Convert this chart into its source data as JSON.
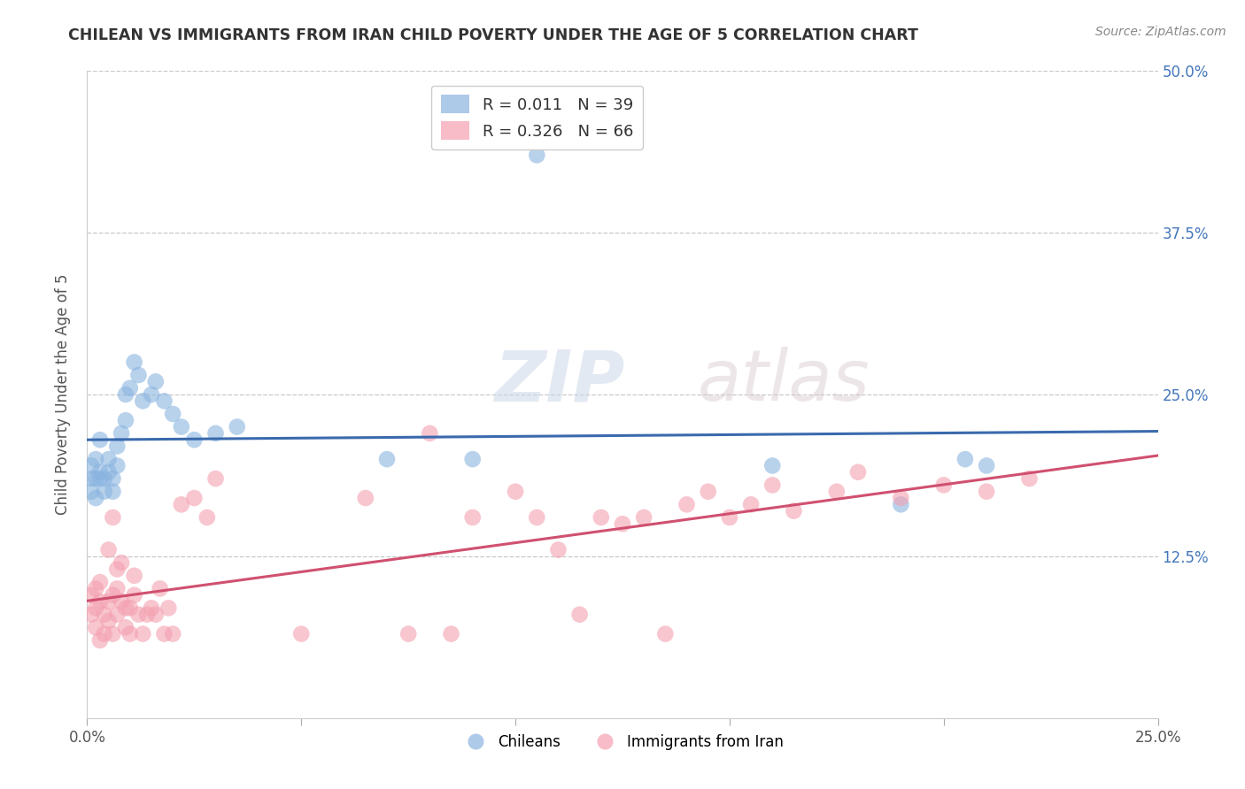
{
  "title": "CHILEAN VS IMMIGRANTS FROM IRAN CHILD POVERTY UNDER THE AGE OF 5 CORRELATION CHART",
  "source": "Source: ZipAtlas.com",
  "ylabel": "Child Poverty Under the Age of 5",
  "xlim": [
    0.0,
    0.25
  ],
  "ylim": [
    0.0,
    0.5
  ],
  "ytick_positions": [
    0.125,
    0.25,
    0.375,
    0.5
  ],
  "right_ytick_labels": [
    "12.5%",
    "25.0%",
    "37.5%",
    "50.0%"
  ],
  "legend_blue_r": "R = 0.011",
  "legend_blue_n": "N = 39",
  "legend_pink_r": "R = 0.326",
  "legend_pink_n": "N = 66",
  "blue_color": "#8ab4e0",
  "pink_color": "#f4a0b0",
  "blue_line_color": "#3a6aad",
  "pink_line_color": "#d05070",
  "watermark_zip": "ZIP",
  "watermark_atlas": "atlas",
  "blue_scatter_x": [
    0.001,
    0.001,
    0.001,
    0.002,
    0.002,
    0.002,
    0.003,
    0.003,
    0.003,
    0.004,
    0.004,
    0.005,
    0.005,
    0.006,
    0.006,
    0.007,
    0.007,
    0.008,
    0.009,
    0.009,
    0.01,
    0.011,
    0.012,
    0.013,
    0.015,
    0.016,
    0.018,
    0.02,
    0.022,
    0.025,
    0.03,
    0.035,
    0.07,
    0.09,
    0.105,
    0.16,
    0.19,
    0.205,
    0.21
  ],
  "blue_scatter_y": [
    0.195,
    0.185,
    0.175,
    0.2,
    0.185,
    0.17,
    0.215,
    0.19,
    0.185,
    0.175,
    0.185,
    0.19,
    0.2,
    0.185,
    0.175,
    0.21,
    0.195,
    0.22,
    0.25,
    0.23,
    0.255,
    0.275,
    0.265,
    0.245,
    0.25,
    0.26,
    0.245,
    0.235,
    0.225,
    0.215,
    0.22,
    0.225,
    0.2,
    0.2,
    0.435,
    0.195,
    0.165,
    0.2,
    0.195
  ],
  "pink_scatter_x": [
    0.001,
    0.001,
    0.002,
    0.002,
    0.002,
    0.003,
    0.003,
    0.003,
    0.004,
    0.004,
    0.005,
    0.005,
    0.005,
    0.006,
    0.006,
    0.006,
    0.007,
    0.007,
    0.007,
    0.008,
    0.008,
    0.009,
    0.009,
    0.01,
    0.01,
    0.011,
    0.011,
    0.012,
    0.013,
    0.014,
    0.015,
    0.016,
    0.017,
    0.018,
    0.019,
    0.02,
    0.022,
    0.025,
    0.028,
    0.03,
    0.05,
    0.065,
    0.075,
    0.08,
    0.085,
    0.09,
    0.1,
    0.105,
    0.11,
    0.115,
    0.12,
    0.125,
    0.13,
    0.135,
    0.14,
    0.145,
    0.15,
    0.155,
    0.16,
    0.165,
    0.175,
    0.18,
    0.19,
    0.2,
    0.21,
    0.22
  ],
  "pink_scatter_y": [
    0.095,
    0.08,
    0.1,
    0.085,
    0.07,
    0.09,
    0.105,
    0.06,
    0.08,
    0.065,
    0.075,
    0.09,
    0.13,
    0.095,
    0.065,
    0.155,
    0.08,
    0.1,
    0.115,
    0.09,
    0.12,
    0.07,
    0.085,
    0.065,
    0.085,
    0.11,
    0.095,
    0.08,
    0.065,
    0.08,
    0.085,
    0.08,
    0.1,
    0.065,
    0.085,
    0.065,
    0.165,
    0.17,
    0.155,
    0.185,
    0.065,
    0.17,
    0.065,
    0.22,
    0.065,
    0.155,
    0.175,
    0.155,
    0.13,
    0.08,
    0.155,
    0.15,
    0.155,
    0.065,
    0.165,
    0.175,
    0.155,
    0.165,
    0.18,
    0.16,
    0.175,
    0.19,
    0.17,
    0.18,
    0.175,
    0.185
  ]
}
